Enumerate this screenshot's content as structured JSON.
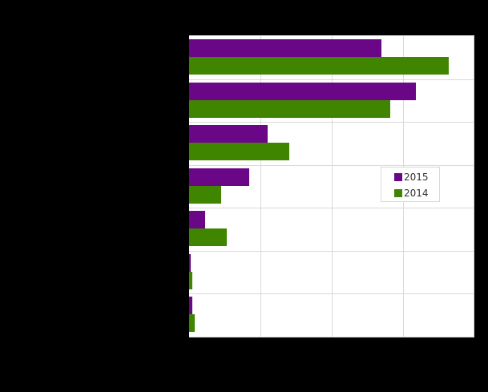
{
  "chart_data": {
    "type": "bar",
    "orientation": "horizontal",
    "title": "",
    "xlabel": "",
    "ylabel": "",
    "categories": [
      "",
      "",
      "",
      "",
      "",
      "",
      ""
    ],
    "series": [
      {
        "name": "2015",
        "color": "#6a0787",
        "values": [
          2.7,
          3.18,
          1.1,
          0.84,
          0.22,
          0.02,
          0.04
        ]
      },
      {
        "name": "2014",
        "color": "#3f8500",
        "values": [
          3.64,
          2.82,
          1.41,
          0.45,
          0.53,
          0.04,
          0.08
        ]
      }
    ],
    "xlim": [
      0,
      4
    ],
    "grid": true,
    "legend_position": "inside-right"
  },
  "legend": {
    "items": [
      {
        "label": "2015",
        "color": "#6a0787"
      },
      {
        "label": "2014",
        "color": "#3f8500"
      }
    ]
  }
}
